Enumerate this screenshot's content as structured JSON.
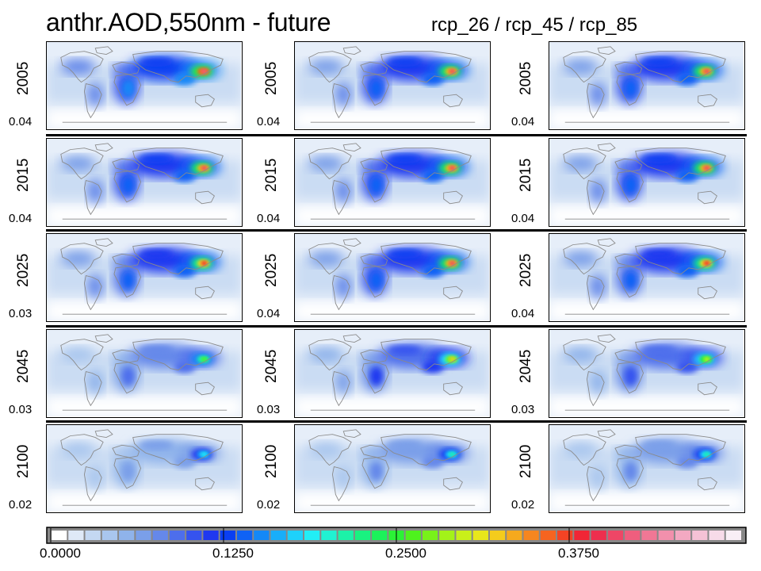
{
  "header": {
    "title": "anthr.AOD,550nm - future",
    "scenarios_label": "rcp_26 / rcp_45 / rcp_85"
  },
  "grid": {
    "columns": [
      "rcp_26",
      "rcp_45",
      "rcp_85"
    ],
    "rows": [
      {
        "year": "2005",
        "means": [
          "0.04",
          "0.04",
          "0.04"
        ],
        "intensity": [
          1.0,
          0.95,
          0.95
        ]
      },
      {
        "year": "2015",
        "means": [
          "0.04",
          "0.04",
          "0.04"
        ],
        "intensity": [
          0.95,
          0.95,
          0.95
        ]
      },
      {
        "year": "2025",
        "means": [
          "0.03",
          "0.04",
          "0.04"
        ],
        "intensity": [
          0.9,
          0.95,
          0.9
        ]
      },
      {
        "year": "2045",
        "means": [
          "0.03",
          "0.03",
          "0.03"
        ],
        "intensity": [
          0.6,
          0.75,
          0.7
        ]
      },
      {
        "year": "2100",
        "means": [
          "0.02",
          "0.02",
          "0.02"
        ],
        "intensity": [
          0.45,
          0.5,
          0.5
        ]
      }
    ]
  },
  "colorbar": {
    "min": 0.0,
    "max": 0.5,
    "tick_labels": [
      "0.0000",
      "0.1250",
      "0.2500",
      "0.3750"
    ],
    "colors": [
      "#ffffff",
      "#dfe9f7",
      "#c4d8f2",
      "#a9c6ee",
      "#8fb3eb",
      "#7a9fe9",
      "#6588ea",
      "#4d6eec",
      "#3553ef",
      "#1f38f0",
      "#0a3ff2",
      "#0f62f5",
      "#1488f7",
      "#19aef9",
      "#1ed1fb",
      "#22eef6",
      "#20f2d2",
      "#1cf2a8",
      "#19f280",
      "#1bf25a",
      "#2bf236",
      "#4ef21d",
      "#78f21a",
      "#a3f219",
      "#c9f01a",
      "#e8e71b",
      "#f4cc1c",
      "#f6a91d",
      "#f6861f",
      "#f66420",
      "#f44324",
      "#f02636",
      "#ee2f4e",
      "#ee4666",
      "#ef5e7e",
      "#f07795",
      "#f290ac",
      "#f3a9c2",
      "#f5c2d6",
      "#f7dbe9",
      "#f9eff6"
    ]
  }
}
